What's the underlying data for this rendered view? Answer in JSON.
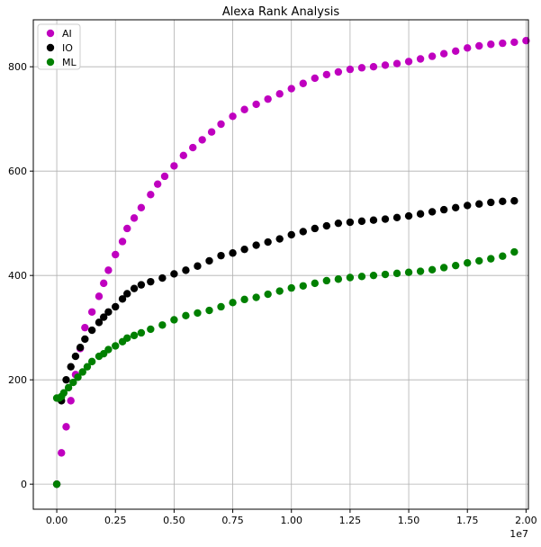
{
  "chart_data": {
    "type": "scatter",
    "title": "Alexa Rank Analysis",
    "xlabel": "",
    "ylabel": "",
    "x_offset_label": "1e7",
    "xlim": [
      -0.1,
      2.01
    ],
    "ylim": [
      -48,
      890
    ],
    "x_ticks": [
      0.0,
      0.25,
      0.5,
      0.75,
      1.0,
      1.25,
      1.5,
      1.75,
      2.0
    ],
    "x_tick_labels": [
      "0.00",
      "0.25",
      "0.50",
      "0.75",
      "1.00",
      "1.25",
      "1.50",
      "1.75",
      "2.00"
    ],
    "y_ticks": [
      0,
      200,
      400,
      600,
      800
    ],
    "y_tick_labels": [
      "0",
      "200",
      "400",
      "600",
      "800"
    ],
    "grid": true,
    "legend_position": "top-left",
    "series": [
      {
        "name": "AI",
        "color": "#bf00bf",
        "x": [
          0.0,
          0.02,
          0.04,
          0.06,
          0.08,
          0.1,
          0.12,
          0.15,
          0.18,
          0.2,
          0.22,
          0.25,
          0.28,
          0.3,
          0.33,
          0.36,
          0.4,
          0.43,
          0.46,
          0.5,
          0.54,
          0.58,
          0.62,
          0.66,
          0.7,
          0.75,
          0.8,
          0.85,
          0.9,
          0.95,
          1.0,
          1.05,
          1.1,
          1.15,
          1.2,
          1.25,
          1.3,
          1.35,
          1.4,
          1.45,
          1.5,
          1.55,
          1.6,
          1.65,
          1.7,
          1.75,
          1.8,
          1.85,
          1.9,
          1.95,
          2.0
        ],
        "y": [
          0,
          60,
          110,
          160,
          210,
          260,
          300,
          330,
          360,
          385,
          410,
          440,
          465,
          490,
          510,
          530,
          555,
          575,
          590,
          610,
          630,
          645,
          660,
          675,
          690,
          705,
          718,
          728,
          738,
          748,
          758,
          768,
          778,
          785,
          790,
          795,
          798,
          800,
          803,
          806,
          810,
          815,
          820,
          825,
          830,
          836,
          840,
          843,
          845,
          847,
          850
        ]
      },
      {
        "name": "IO",
        "color": "#000000",
        "x": [
          0.0,
          0.02,
          0.04,
          0.06,
          0.08,
          0.1,
          0.12,
          0.15,
          0.18,
          0.2,
          0.22,
          0.25,
          0.28,
          0.3,
          0.33,
          0.36,
          0.4,
          0.45,
          0.5,
          0.55,
          0.6,
          0.65,
          0.7,
          0.75,
          0.8,
          0.85,
          0.9,
          0.95,
          1.0,
          1.05,
          1.1,
          1.15,
          1.2,
          1.25,
          1.3,
          1.35,
          1.4,
          1.45,
          1.5,
          1.55,
          1.6,
          1.65,
          1.7,
          1.75,
          1.8,
          1.85,
          1.9,
          1.95
        ],
        "y": [
          0,
          160,
          200,
          225,
          245,
          262,
          278,
          295,
          310,
          320,
          330,
          340,
          355,
          365,
          375,
          382,
          388,
          395,
          403,
          410,
          418,
          428,
          438,
          443,
          450,
          458,
          464,
          470,
          478,
          484,
          490,
          495,
          500,
          502,
          504,
          506,
          508,
          511,
          514,
          518,
          522,
          526,
          530,
          534,
          537,
          540,
          542,
          543
        ]
      },
      {
        "name": "ML",
        "color": "#008000",
        "x": [
          0.0,
          0.0,
          0.01,
          0.02,
          0.03,
          0.05,
          0.07,
          0.09,
          0.11,
          0.13,
          0.15,
          0.18,
          0.2,
          0.22,
          0.25,
          0.28,
          0.3,
          0.33,
          0.36,
          0.4,
          0.45,
          0.5,
          0.55,
          0.6,
          0.65,
          0.7,
          0.75,
          0.8,
          0.85,
          0.9,
          0.95,
          1.0,
          1.05,
          1.1,
          1.15,
          1.2,
          1.25,
          1.3,
          1.35,
          1.4,
          1.45,
          1.5,
          1.55,
          1.6,
          1.65,
          1.7,
          1.75,
          1.8,
          1.85,
          1.9,
          1.95
        ],
        "y": [
          0,
          165,
          165,
          168,
          175,
          185,
          195,
          205,
          215,
          225,
          235,
          245,
          250,
          258,
          265,
          273,
          280,
          285,
          290,
          297,
          305,
          315,
          323,
          328,
          333,
          340,
          348,
          354,
          358,
          364,
          370,
          376,
          380,
          385,
          390,
          393,
          396,
          398,
          400,
          402,
          404,
          406,
          408,
          411,
          415,
          419,
          424,
          428,
          432,
          437,
          445
        ]
      }
    ]
  }
}
